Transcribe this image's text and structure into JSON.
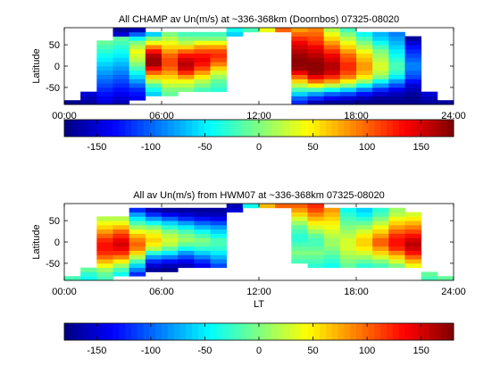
{
  "colors": {
    "background": "#ffffff",
    "axis": "#000000",
    "colormap": "jet"
  },
  "chart_data": [
    {
      "type": "heatmap",
      "title": "All CHAMP av Un(m/s) at ~336-368km (Doornbos) 07325-08020",
      "xlabel": "",
      "ylabel": "Latitude",
      "xlim": [
        0,
        24
      ],
      "ylim": [
        -90,
        90
      ],
      "x_ticks": [
        0,
        6,
        12,
        18,
        24
      ],
      "x_tick_labels": [
        "00:00",
        "06:00",
        "12:00",
        "18:00",
        "24:00"
      ],
      "y_ticks": [
        -50,
        0,
        50
      ],
      "y_tick_labels": [
        "-50",
        "0",
        "50"
      ],
      "lt_bin_hours": 1,
      "lat_bin_deg": 10,
      "columns": [
        {
          "lt": 0,
          "lat": [
            -90,
            -80
          ],
          "values": [
            -175
          ]
        },
        {
          "lt": 1,
          "lat": [
            -90,
            -60
          ],
          "values": [
            -170,
            -160,
            -150
          ]
        },
        {
          "lt": 2,
          "lat": [
            -90,
            60
          ],
          "values": [
            -150,
            -140,
            -130,
            -120,
            -110,
            -100,
            -90,
            -80,
            -70,
            -60,
            -50,
            -40,
            -30,
            -20,
            -10
          ]
        },
        {
          "lt": 3,
          "lat": [
            -90,
            90
          ],
          "values": [
            -160,
            -150,
            -140,
            -130,
            -120,
            -110,
            -100,
            -90,
            -80,
            -70,
            -60,
            -50,
            -40,
            -30,
            -20,
            -10,
            -150,
            -170
          ]
        },
        {
          "lt": 4,
          "lat": [
            -80,
            90
          ],
          "values": [
            -140,
            -130,
            -120,
            -100,
            -80,
            -60,
            -40,
            -20,
            0,
            20,
            30,
            40,
            20,
            0,
            -40,
            -100,
            -160
          ]
        },
        {
          "lt": 5,
          "lat": [
            -70,
            80
          ],
          "values": [
            -60,
            -40,
            -20,
            20,
            60,
            100,
            140,
            170,
            170,
            160,
            130,
            90,
            40,
            0,
            -60
          ]
        },
        {
          "lt": 6,
          "lat": [
            -70,
            80
          ],
          "values": [
            -10,
            0,
            20,
            40,
            60,
            80,
            100,
            110,
            110,
            100,
            80,
            60,
            40,
            20,
            0
          ]
        },
        {
          "lt": 7,
          "lat": [
            -60,
            80
          ],
          "values": [
            0,
            20,
            40,
            80,
            120,
            150,
            160,
            150,
            130,
            100,
            60,
            20,
            0,
            -20
          ]
        },
        {
          "lt": 8,
          "lat": [
            -60,
            80
          ],
          "values": [
            -20,
            0,
            20,
            50,
            80,
            110,
            130,
            140,
            130,
            110,
            80,
            40,
            0,
            -20
          ]
        },
        {
          "lt": 9,
          "lat": [
            -60,
            80
          ],
          "values": [
            -30,
            -20,
            -10,
            10,
            30,
            60,
            90,
            110,
            120,
            110,
            80,
            40,
            0,
            -20
          ]
        },
        {
          "lt": 10,
          "lat": [
            70,
            90
          ],
          "values": [
            -60,
            -40
          ]
        },
        {
          "lt": 11,
          "lat": [
            80,
            90
          ],
          "values": [
            -20
          ]
        },
        {
          "lt": 12,
          "lat": [
            80,
            90
          ],
          "values": [
            40
          ]
        },
        {
          "lt": 13,
          "lat": [
            80,
            90
          ],
          "values": [
            100
          ]
        },
        {
          "lt": 14,
          "lat": [
            -90,
            90
          ],
          "values": [
            -120,
            -100,
            -60,
            -20,
            20,
            60,
            100,
            140,
            170,
            175,
            175,
            170,
            160,
            150,
            140,
            120,
            100,
            80
          ]
        },
        {
          "lt": 15,
          "lat": [
            -90,
            90
          ],
          "values": [
            -160,
            -120,
            -80,
            -20,
            40,
            100,
            140,
            170,
            175,
            175,
            170,
            160,
            150,
            140,
            120,
            110,
            100,
            90
          ]
        },
        {
          "lt": 16,
          "lat": [
            -90,
            90
          ],
          "values": [
            -170,
            -140,
            -100,
            -40,
            20,
            80,
            120,
            150,
            160,
            160,
            150,
            140,
            120,
            100,
            80,
            60,
            40,
            20
          ]
        },
        {
          "lt": 17,
          "lat": [
            -90,
            90
          ],
          "values": [
            -170,
            -150,
            -110,
            -60,
            0,
            50,
            90,
            110,
            120,
            120,
            110,
            100,
            80,
            60,
            40,
            20,
            0,
            -20
          ]
        },
        {
          "lt": 18,
          "lat": [
            -90,
            80
          ],
          "values": [
            -175,
            -160,
            -130,
            -90,
            -40,
            10,
            50,
            70,
            80,
            80,
            70,
            60,
            40,
            20,
            0,
            -20,
            -40
          ]
        },
        {
          "lt": 19,
          "lat": [
            -90,
            80
          ],
          "values": [
            -175,
            -170,
            -150,
            -120,
            -80,
            -40,
            0,
            20,
            30,
            30,
            20,
            10,
            0,
            -20,
            -40,
            -60,
            -70
          ]
        },
        {
          "lt": 20,
          "lat": [
            -90,
            80
          ],
          "values": [
            -175,
            -170,
            -160,
            -140,
            -110,
            -80,
            -50,
            -30,
            -20,
            -20,
            -30,
            -40,
            -50,
            -60,
            -70,
            -80,
            -90
          ]
        },
        {
          "lt": 21,
          "lat": [
            -90,
            70
          ],
          "values": [
            -175,
            -175,
            -170,
            -160,
            -150,
            -130,
            -110,
            -100,
            -90,
            -90,
            -100,
            -110,
            -120,
            -130,
            -150,
            -170
          ]
        },
        {
          "lt": 22,
          "lat": [
            -90,
            -60
          ],
          "values": [
            -170,
            -160,
            -150
          ]
        },
        {
          "lt": 23,
          "lat": [
            -90,
            -80
          ],
          "values": [
            -170
          ]
        }
      ]
    },
    {
      "type": "heatmap",
      "title": "All av Un(m/s) from HWM07 at ~336-368km 07325-08020",
      "xlabel": "LT",
      "ylabel": "Latitude",
      "xlim": [
        0,
        24
      ],
      "ylim": [
        -90,
        90
      ],
      "x_ticks": [
        0,
        6,
        12,
        18,
        24
      ],
      "x_tick_labels": [
        "00:00",
        "06:00",
        "12:00",
        "18:00",
        "24:00"
      ],
      "y_ticks": [
        -50,
        0,
        50
      ],
      "y_tick_labels": [
        "-50",
        "0",
        "50"
      ],
      "lt_bin_hours": 1,
      "lat_bin_deg": 10,
      "columns": [
        {
          "lt": 0,
          "lat": [
            -90,
            -80
          ],
          "values": [
            -20
          ]
        },
        {
          "lt": 1,
          "lat": [
            -90,
            -60
          ],
          "values": [
            -40,
            -30,
            -10
          ]
        },
        {
          "lt": 2,
          "lat": [
            -90,
            60
          ],
          "values": [
            -20,
            -10,
            10,
            40,
            70,
            100,
            120,
            130,
            130,
            120,
            100,
            80,
            60,
            40,
            20
          ]
        },
        {
          "lt": 3,
          "lat": [
            -80,
            60
          ],
          "values": [
            -40,
            -20,
            10,
            50,
            90,
            120,
            140,
            150,
            140,
            120,
            100,
            70,
            40,
            20
          ]
        },
        {
          "lt": 4,
          "lat": [
            -80,
            80
          ],
          "values": [
            -120,
            -90,
            -60,
            -20,
            20,
            60,
            90,
            100,
            90,
            70,
            40,
            10,
            -20,
            -50,
            -80,
            -120
          ]
        },
        {
          "lt": 5,
          "lat": [
            -70,
            80
          ],
          "values": [
            -170,
            -150,
            -120,
            -80,
            -30,
            20,
            50,
            60,
            50,
            30,
            0,
            -40,
            -80,
            -120,
            -160
          ]
        },
        {
          "lt": 6,
          "lat": [
            -70,
            80
          ],
          "values": [
            -175,
            -160,
            -130,
            -90,
            -50,
            -10,
            20,
            30,
            20,
            0,
            -30,
            -60,
            -100,
            -140,
            -170
          ]
        },
        {
          "lt": 7,
          "lat": [
            -60,
            80
          ],
          "values": [
            -160,
            -140,
            -110,
            -80,
            -40,
            -10,
            10,
            0,
            -20,
            -50,
            -80,
            -120,
            -150,
            -170
          ]
        },
        {
          "lt": 8,
          "lat": [
            -60,
            80
          ],
          "values": [
            -140,
            -120,
            -90,
            -60,
            -30,
            -10,
            0,
            -20,
            -40,
            -70,
            -100,
            -130,
            -160,
            -170
          ]
        },
        {
          "lt": 9,
          "lat": [
            -60,
            80
          ],
          "values": [
            -110,
            -90,
            -70,
            -50,
            -30,
            -20,
            -20,
            -40,
            -60,
            -80,
            -110,
            -140,
            -160,
            -170
          ]
        },
        {
          "lt": 10,
          "lat": [
            70,
            90
          ],
          "values": [
            -150,
            -160
          ]
        },
        {
          "lt": 11,
          "lat": [
            80,
            90
          ],
          "values": [
            -40
          ]
        },
        {
          "lt": 12,
          "lat": [
            80,
            90
          ],
          "values": [
            70
          ]
        },
        {
          "lt": 13,
          "lat": [
            80,
            90
          ],
          "values": [
            100
          ]
        },
        {
          "lt": 14,
          "lat": [
            -50,
            90
          ],
          "values": [
            -20,
            -10,
            0,
            -10,
            -20,
            -30,
            -30,
            -20,
            -10,
            10,
            30,
            60,
            80,
            100
          ]
        },
        {
          "lt": 15,
          "lat": [
            -60,
            90
          ],
          "values": [
            -30,
            -20,
            -10,
            0,
            -10,
            -20,
            -20,
            -10,
            10,
            30,
            50,
            70,
            90,
            110,
            120
          ]
        },
        {
          "lt": 16,
          "lat": [
            -60,
            80
          ],
          "values": [
            -40,
            -30,
            -20,
            -10,
            0,
            10,
            10,
            20,
            30,
            40,
            50,
            60,
            70,
            80
          ]
        },
        {
          "lt": 17,
          "lat": [
            -60,
            80
          ],
          "values": [
            -10,
            0,
            10,
            20,
            30,
            30,
            30,
            20,
            10,
            0,
            -10,
            -20,
            -30,
            -40
          ]
        },
        {
          "lt": 18,
          "lat": [
            -60,
            80
          ],
          "values": [
            -30,
            -10,
            10,
            30,
            50,
            60,
            60,
            50,
            30,
            10,
            -10,
            -30,
            -50,
            -60
          ]
        },
        {
          "lt": 19,
          "lat": [
            -60,
            80
          ],
          "values": [
            -20,
            0,
            30,
            60,
            80,
            100,
            100,
            80,
            60,
            40,
            20,
            0,
            -20,
            -30
          ]
        },
        {
          "lt": 20,
          "lat": [
            -60,
            80
          ],
          "values": [
            0,
            30,
            60,
            90,
            120,
            130,
            130,
            120,
            100,
            80,
            60,
            40,
            20,
            10
          ]
        },
        {
          "lt": 21,
          "lat": [
            -60,
            70
          ],
          "values": [
            40,
            70,
            100,
            130,
            150,
            160,
            150,
            130,
            110,
            90,
            70,
            50,
            30
          ]
        },
        {
          "lt": 22,
          "lat": [
            -90,
            -70
          ],
          "values": [
            -20,
            -10
          ]
        },
        {
          "lt": 23,
          "lat": [
            -90,
            -80
          ],
          "values": [
            -10
          ]
        }
      ]
    }
  ],
  "colorbars": [
    {
      "min": -180,
      "max": 180,
      "ticks": [
        -150,
        -100,
        -50,
        0,
        50,
        100,
        150
      ],
      "tick_labels": [
        "-150",
        "-100",
        "-50",
        "0",
        "50",
        "100",
        "150"
      ]
    },
    {
      "min": -180,
      "max": 180,
      "ticks": [
        -150,
        -100,
        -50,
        0,
        50,
        100,
        150
      ],
      "tick_labels": [
        "-150",
        "-100",
        "-50",
        "0",
        "50",
        "100",
        "150"
      ]
    }
  ]
}
